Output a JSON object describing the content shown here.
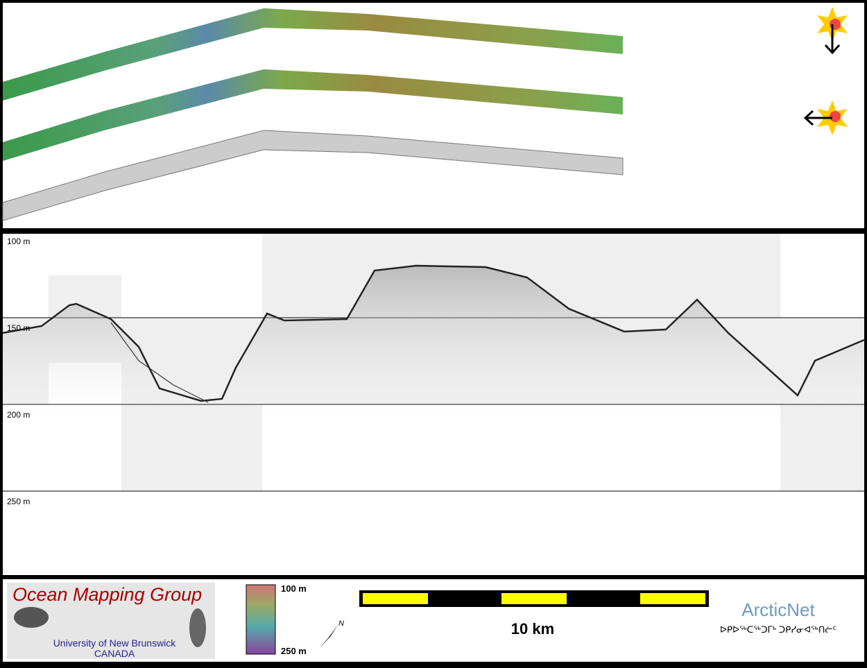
{
  "profile": {
    "depth_labels": [
      "100 m",
      "150 m",
      "200 m",
      "250 m"
    ]
  },
  "logo": {
    "title": "Ocean Mapping Group",
    "university": "University of New Brunswick",
    "country": "CANADA"
  },
  "colorbar": {
    "top": "100 m",
    "bottom": "250 m"
  },
  "compass": "N",
  "scale": "10 km",
  "partner": {
    "name": "ArcticNet",
    "syllabics": "ᐅᑭᐅᖅᑕᖅᑐᒥᒃ ᑐᑭᓯᓂᐊᖅᑎᓖᑦ"
  }
}
